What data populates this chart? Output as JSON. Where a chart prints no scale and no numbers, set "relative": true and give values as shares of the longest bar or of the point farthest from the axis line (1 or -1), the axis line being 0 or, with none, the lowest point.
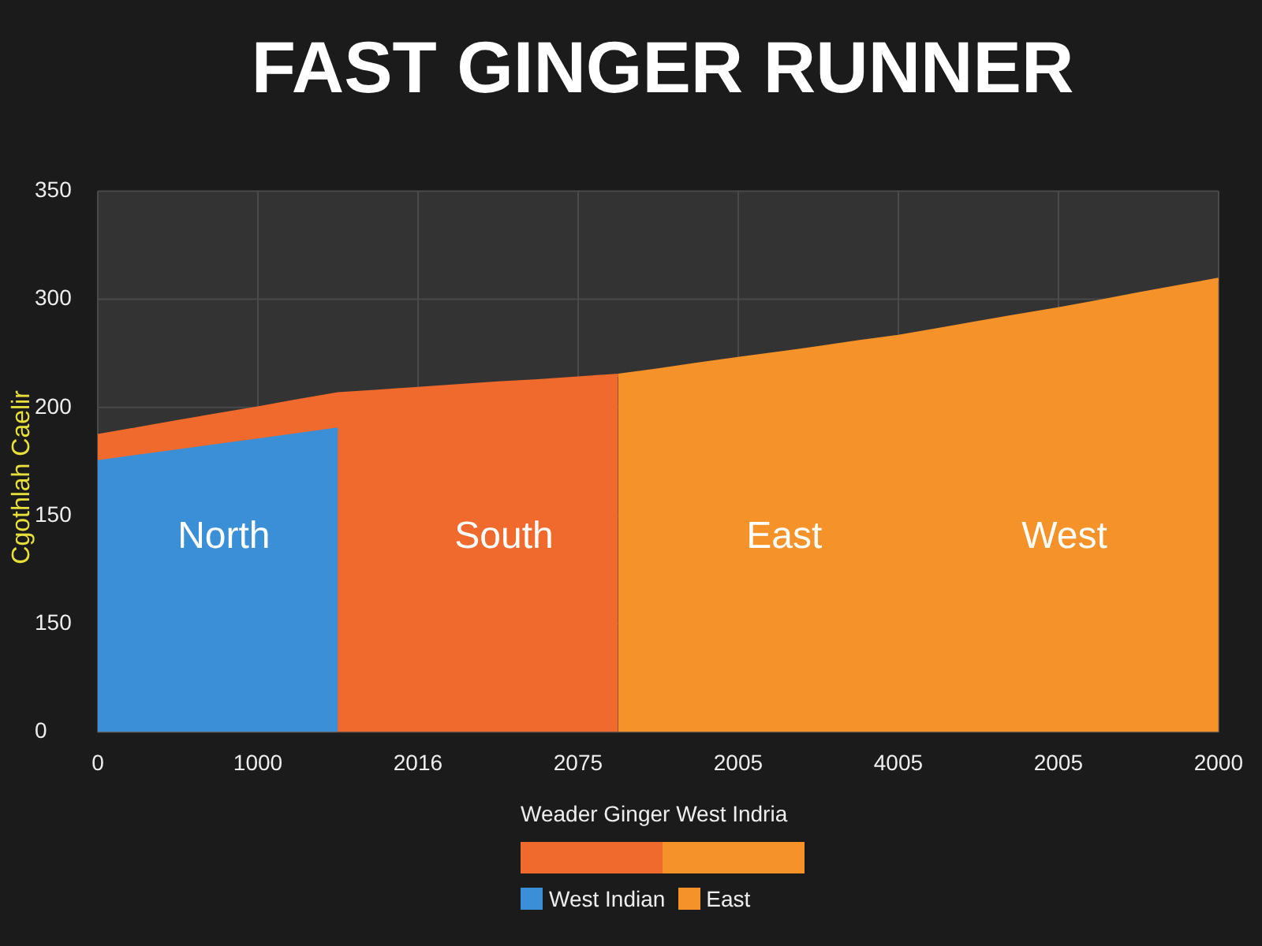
{
  "chart_data": {
    "type": "area",
    "title": "FAST GINGER RUNNER",
    "ylabel": "Cgothlah Caelir",
    "legend_title": "Weader Ginger West Indria",
    "relative": true,
    "categories": [
      "0",
      null,
      null,
      null,
      "1000",
      null,
      null,
      null,
      "2016",
      null,
      null,
      null,
      "2075",
      null,
      null,
      null,
      "2005",
      null,
      null,
      null,
      "4005",
      null,
      null,
      null,
      "2005",
      null,
      null,
      null,
      "2000"
    ],
    "series": [
      {
        "name": "West Indian",
        "color": "#3a8fd6",
        "values": [
          0.597,
          0.609,
          0.621,
          0.633,
          0.645,
          0.657,
          0.669,
          null,
          null,
          null,
          null,
          null,
          null,
          null,
          null,
          null,
          null,
          null,
          null,
          null,
          null,
          null,
          null,
          null,
          null,
          null,
          null,
          null,
          null
        ]
      },
      {
        "color": "#f06a2e",
        "values": [
          0.655,
          0.67,
          0.686,
          0.701,
          0.716,
          0.732,
          0.747,
          0.753,
          0.759,
          0.765,
          0.771,
          0.776,
          0.782,
          0.788,
          null,
          null,
          null,
          null,
          null,
          null,
          null,
          null,
          null,
          null,
          null,
          null,
          null,
          null,
          null
        ]
      },
      {
        "name": "East",
        "color": "#f5922a",
        "values": [
          null,
          null,
          null,
          null,
          null,
          null,
          null,
          null,
          null,
          null,
          null,
          null,
          null,
          0.788,
          0.8,
          0.813,
          0.825,
          0.837,
          0.849,
          0.862,
          0.874,
          0.889,
          0.905,
          0.92,
          0.935,
          0.951,
          0.968,
          0.984,
          1
        ]
      }
    ],
    "annotations": [
      "North",
      "South",
      "East",
      "West",
      "350",
      "300",
      "200",
      "150",
      "150",
      "0"
    ],
    "grid": true,
    "legend": "bottom"
  }
}
